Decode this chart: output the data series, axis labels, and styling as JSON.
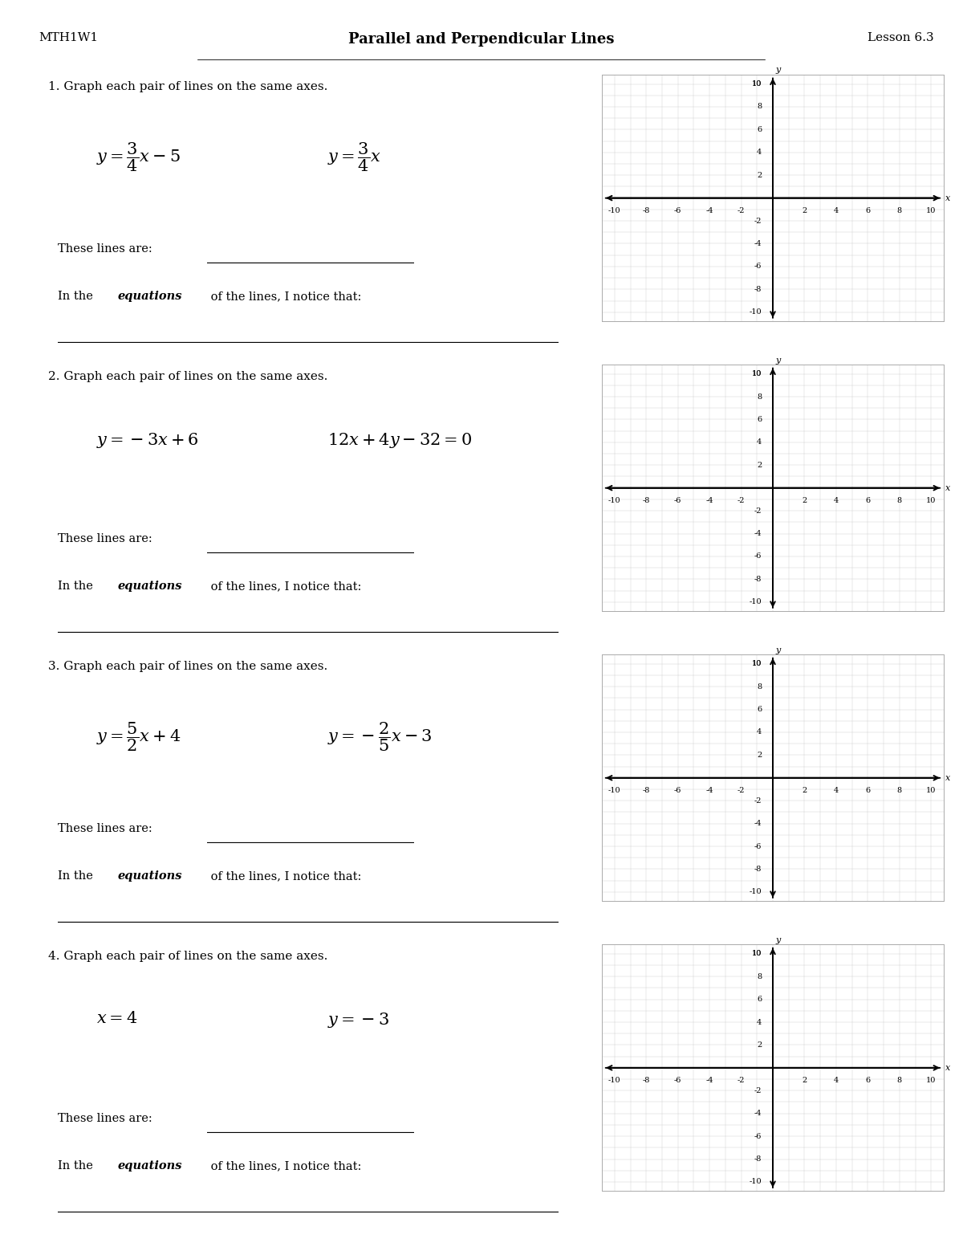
{
  "title": "Parallel and Perpendicular Lines",
  "header_left": "MTH1W1",
  "header_right": "Lesson 6.3",
  "background": "#ffffff",
  "questions": [
    {
      "number": "1.",
      "instruction": "Graph each pair of lines on the same axes.",
      "eq1": "$y = \\dfrac{3}{4}x - 5$",
      "eq2": "$y = \\dfrac{3}{4}x$",
      "eq1_large": true,
      "eq2_large": true
    },
    {
      "number": "2.",
      "instruction": "Graph each pair of lines on the same axes.",
      "eq1": "$y = -3x + 6$",
      "eq2": "$12x + 4y - 32 = 0$",
      "eq1_large": true,
      "eq2_large": true
    },
    {
      "number": "3.",
      "instruction": "Graph each pair of lines on the same axes.",
      "eq1": "$y = \\dfrac{5}{2}x + 4$",
      "eq2": "$y = -\\dfrac{2}{5}x - 3$",
      "eq1_large": true,
      "eq2_large": true
    },
    {
      "number": "4.",
      "instruction": "Graph each pair of lines on the same axes.",
      "eq1": "$x = 4$",
      "eq2": "$y = -3$",
      "eq1_large": true,
      "eq2_large": true
    }
  ],
  "grid_color": "#cccccc",
  "axis_color": "#000000",
  "tick_label_fontsize": 7,
  "grid_range": 10
}
